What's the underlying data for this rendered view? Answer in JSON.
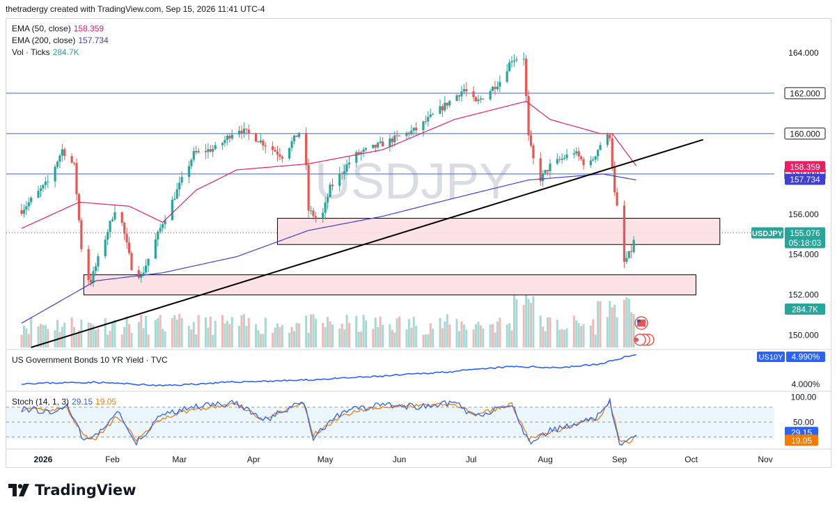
{
  "header": {
    "credit": "thetradergy created with TradingView.com, Sep 15, 2026 11:41 UTC-4"
  },
  "legend": {
    "ema50": {
      "label": "EMA (50, close)",
      "value": "158.359",
      "color": "#e91e63"
    },
    "ema200": {
      "label": "EMA (200, close)",
      "value": "157.734",
      "color": "#3f3fd8"
    },
    "vol": {
      "label": "Vol · Ticks",
      "value": "284.7K",
      "color": "#26a69a"
    }
  },
  "watermark": "USDJPY",
  "colors": {
    "up": "#26a69a",
    "down": "#ef5350",
    "zone_fill": "#fcdde0",
    "zone_border": "#000000",
    "hline": "#2962ff",
    "trend": "#000000",
    "bond": "#2962ff",
    "stoch_k": "#2962ff",
    "stoch_d": "#f57c00"
  },
  "chart_data": [
    {
      "type": "candlestick",
      "symbol": "USDJPY",
      "ylim": [
        149.4,
        165.0
      ],
      "y_ticks": [
        "164.000",
        "156.000",
        "154.000",
        "152.000",
        "150.000"
      ],
      "x_ticks": [
        "2026",
        "Feb",
        "Mar",
        "Apr",
        "May",
        "Jun",
        "Jul",
        "Aug",
        "Sep",
        "Oct",
        "Nov"
      ],
      "horizontal_levels": [
        {
          "value": 162.0,
          "label": "162.000"
        },
        {
          "value": 160.0,
          "label": "160.000"
        },
        {
          "value": 158.0,
          "label": "158.000"
        }
      ],
      "last_price": {
        "symbol": "USDJPY",
        "value": "155.076",
        "countdown": "05:18:03"
      },
      "ema50_last": "158.359",
      "ema200_last": "157.734",
      "volume_last": "284.7K",
      "zones": [
        {
          "from": "Apr 18",
          "to": "Oct 20",
          "low": 154.5,
          "high": 155.8
        },
        {
          "from": "Jan 27",
          "to": "Oct 10",
          "low": 152.0,
          "high": 153.0
        }
      ],
      "trendline": {
        "from": {
          "date": "Jan 5",
          "value": 149.4
        },
        "to": {
          "date": "Oct 13",
          "value": 159.7
        }
      },
      "anchors": [
        [
          "Jan 1",
          156.2
        ],
        [
          "Jan 12",
          157.6
        ],
        [
          "Jan 18",
          159.2
        ],
        [
          "Jan 23",
          158.4
        ],
        [
          "Jan 27",
          153.0
        ],
        [
          "Jan 30",
          152.7
        ],
        [
          "Feb 10",
          156.6
        ],
        [
          "Feb 16",
          153.4
        ],
        [
          "Feb 20",
          152.9
        ],
        [
          "Mar 1",
          155.6
        ],
        [
          "Mar 14",
          159.0
        ],
        [
          "Mar 24",
          159.3
        ],
        [
          "Apr 1",
          160.3
        ],
        [
          "Apr 10",
          159.7
        ],
        [
          "Apr 20",
          158.9
        ],
        [
          "Apr 29",
          160.4
        ],
        [
          "May 1",
          156.2
        ],
        [
          "May 6",
          155.6
        ],
        [
          "May 10",
          157.3
        ],
        [
          "May 20",
          158.9
        ],
        [
          "Jun 1",
          159.5
        ],
        [
          "Jun 15",
          160.2
        ],
        [
          "Jun 30",
          161.7
        ],
        [
          "Jul 5",
          162.2
        ],
        [
          "Jul 10",
          161.5
        ],
        [
          "Jul 20",
          162.6
        ],
        [
          "Jul 25",
          163.7
        ],
        [
          "Jul 30",
          163.8
        ],
        [
          "Aug 1",
          159.8
        ],
        [
          "Aug 5",
          157.6
        ],
        [
          "Aug 10",
          158.4
        ],
        [
          "Aug 20",
          159.1
        ],
        [
          "Aug 26",
          158.3
        ],
        [
          "Sep 1",
          159.7
        ],
        [
          "Sep 4",
          159.9
        ],
        [
          "Sep 6",
          157.0
        ],
        [
          "Sep 8",
          155.6
        ],
        [
          "Sep 10",
          153.6
        ],
        [
          "Sep 13",
          154.2
        ],
        [
          "Sep 15",
          155.1
        ]
      ],
      "ema50_path": [
        [
          "Jan 1",
          155.3
        ],
        [
          "Jan 25",
          156.6
        ],
        [
          "Feb 15",
          156.4
        ],
        [
          "Mar 1",
          155.6
        ],
        [
          "Mar 15",
          157.2
        ],
        [
          "Apr 1",
          158.2
        ],
        [
          "May 1",
          158.5
        ],
        [
          "Jun 1",
          159.2
        ],
        [
          "Jul 1",
          160.7
        ],
        [
          "Jul 31",
          161.6
        ],
        [
          "Aug 10",
          160.7
        ],
        [
          "Aug 31",
          160.0
        ],
        [
          "Sep 5",
          160.0
        ],
        [
          "Sep 15",
          158.4
        ]
      ],
      "ema200_path": [
        [
          "Jan 1",
          150.6
        ],
        [
          "Feb 1",
          152.7
        ],
        [
          "Mar 1",
          153.1
        ],
        [
          "Apr 1",
          153.9
        ],
        [
          "May 1",
          155.2
        ],
        [
          "Jun 1",
          155.9
        ],
        [
          "Jul 1",
          156.8
        ],
        [
          "Aug 1",
          157.7
        ],
        [
          "Sep 1",
          158.0
        ],
        [
          "Sep 15",
          157.7
        ]
      ]
    },
    {
      "type": "line",
      "title": "US Government Bonds 10 YR Yield · TVC",
      "symbol": "US10Y",
      "last_value": "4.990%",
      "y_ticks": [
        "4.000%"
      ],
      "ylim": [
        3.9,
        5.1
      ],
      "anchors": [
        [
          "Jan 1",
          4.1
        ],
        [
          "Feb 1",
          4.14
        ],
        [
          "Mar 1",
          4.03
        ],
        [
          "Apr 1",
          4.15
        ],
        [
          "May 1",
          4.21
        ],
        [
          "Jun 1",
          4.33
        ],
        [
          "Jul 1",
          4.48
        ],
        [
          "Jul 25",
          4.63
        ],
        [
          "Aug 15",
          4.6
        ],
        [
          "Sep 1",
          4.72
        ],
        [
          "Sep 10",
          4.93
        ],
        [
          "Sep 15",
          4.99
        ]
      ]
    },
    {
      "type": "line",
      "title": "Stoch (14, 1, 3)",
      "k_value": "29.15",
      "d_value": "19.05",
      "y_ticks": [
        "100.00",
        "50.00"
      ],
      "ylim": [
        0,
        105
      ],
      "band": [
        20,
        80
      ],
      "k_anchors": [
        [
          "Jan 1",
          78
        ],
        [
          "Jan 12",
          72
        ],
        [
          "Jan 20",
          80
        ],
        [
          "Jan 27",
          15
        ],
        [
          "Feb 1",
          20
        ],
        [
          "Feb 10",
          70
        ],
        [
          "Feb 18",
          10
        ],
        [
          "Mar 1",
          65
        ],
        [
          "Mar 14",
          80
        ],
        [
          "Apr 1",
          88
        ],
        [
          "Apr 12",
          52
        ],
        [
          "Apr 29",
          92
        ],
        [
          "May 3",
          18
        ],
        [
          "May 12",
          60
        ],
        [
          "May 20",
          76
        ],
        [
          "Jun 1",
          85
        ],
        [
          "Jun 15",
          80
        ],
        [
          "Jul 1",
          88
        ],
        [
          "Jul 10",
          60
        ],
        [
          "Jul 25",
          88
        ],
        [
          "Aug 1",
          10
        ],
        [
          "Aug 10",
          32
        ],
        [
          "Aug 22",
          50
        ],
        [
          "Aug 30",
          62
        ],
        [
          "Sep 4",
          90
        ],
        [
          "Sep 8",
          12
        ],
        [
          "Sep 11",
          6
        ],
        [
          "Sep 15",
          29
        ]
      ],
      "d_anchors": [
        [
          "Jan 1",
          74
        ],
        [
          "Jan 12",
          75
        ],
        [
          "Jan 20",
          78
        ],
        [
          "Jan 27",
          22
        ],
        [
          "Feb 1",
          16
        ],
        [
          "Feb 10",
          62
        ],
        [
          "Feb 18",
          14
        ],
        [
          "Mar 1",
          58
        ],
        [
          "Mar 14",
          76
        ],
        [
          "Apr 1",
          86
        ],
        [
          "Apr 12",
          56
        ],
        [
          "Apr 29",
          88
        ],
        [
          "May 3",
          24
        ],
        [
          "May 12",
          54
        ],
        [
          "May 20",
          72
        ],
        [
          "Jun 1",
          82
        ],
        [
          "Jun 15",
          82
        ],
        [
          "Jul 1",
          86
        ],
        [
          "Jul 10",
          64
        ],
        [
          "Jul 25",
          86
        ],
        [
          "Aug 1",
          16
        ],
        [
          "Aug 10",
          28
        ],
        [
          "Aug 22",
          48
        ],
        [
          "Aug 30",
          58
        ],
        [
          "Sep 4",
          88
        ],
        [
          "Sep 8",
          18
        ],
        [
          "Sep 11",
          8
        ],
        [
          "Sep 15",
          19
        ]
      ]
    }
  ],
  "footer": {
    "brand": "TradingView"
  }
}
